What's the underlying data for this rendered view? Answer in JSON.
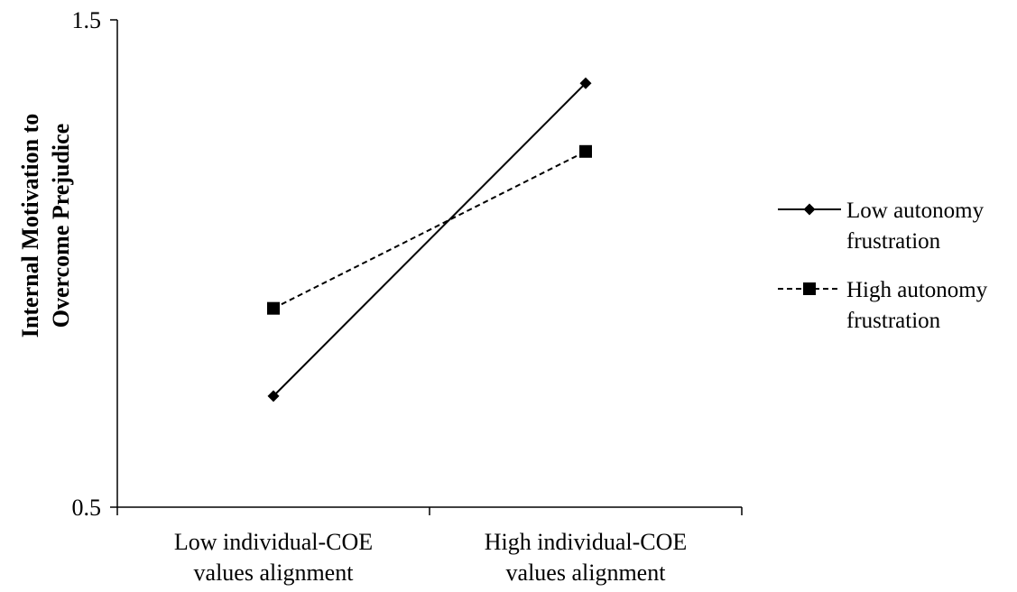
{
  "chart_data": {
    "type": "line",
    "categories": [
      [
        "Low individual-COE",
        "values alignment"
      ],
      [
        "High individual-COE",
        "values alignment"
      ]
    ],
    "series": [
      {
        "name": [
          "Low autonomy",
          "frustration"
        ],
        "values": [
          0.728,
          1.37
        ],
        "color": "#000000",
        "dash": "solid",
        "marker": "diamond"
      },
      {
        "name": [
          "High autonomy",
          "frustration"
        ],
        "values": [
          0.908,
          1.23
        ],
        "color": "#000000",
        "dash": "dashed",
        "marker": "square"
      }
    ],
    "ylabel": [
      "Internal Motivation to",
      "Overcome Prejudice"
    ],
    "ylim": [
      0.5,
      1.5
    ],
    "yticks": [
      "0.5",
      "1.5"
    ],
    "grid": false,
    "legend_position": "right"
  }
}
